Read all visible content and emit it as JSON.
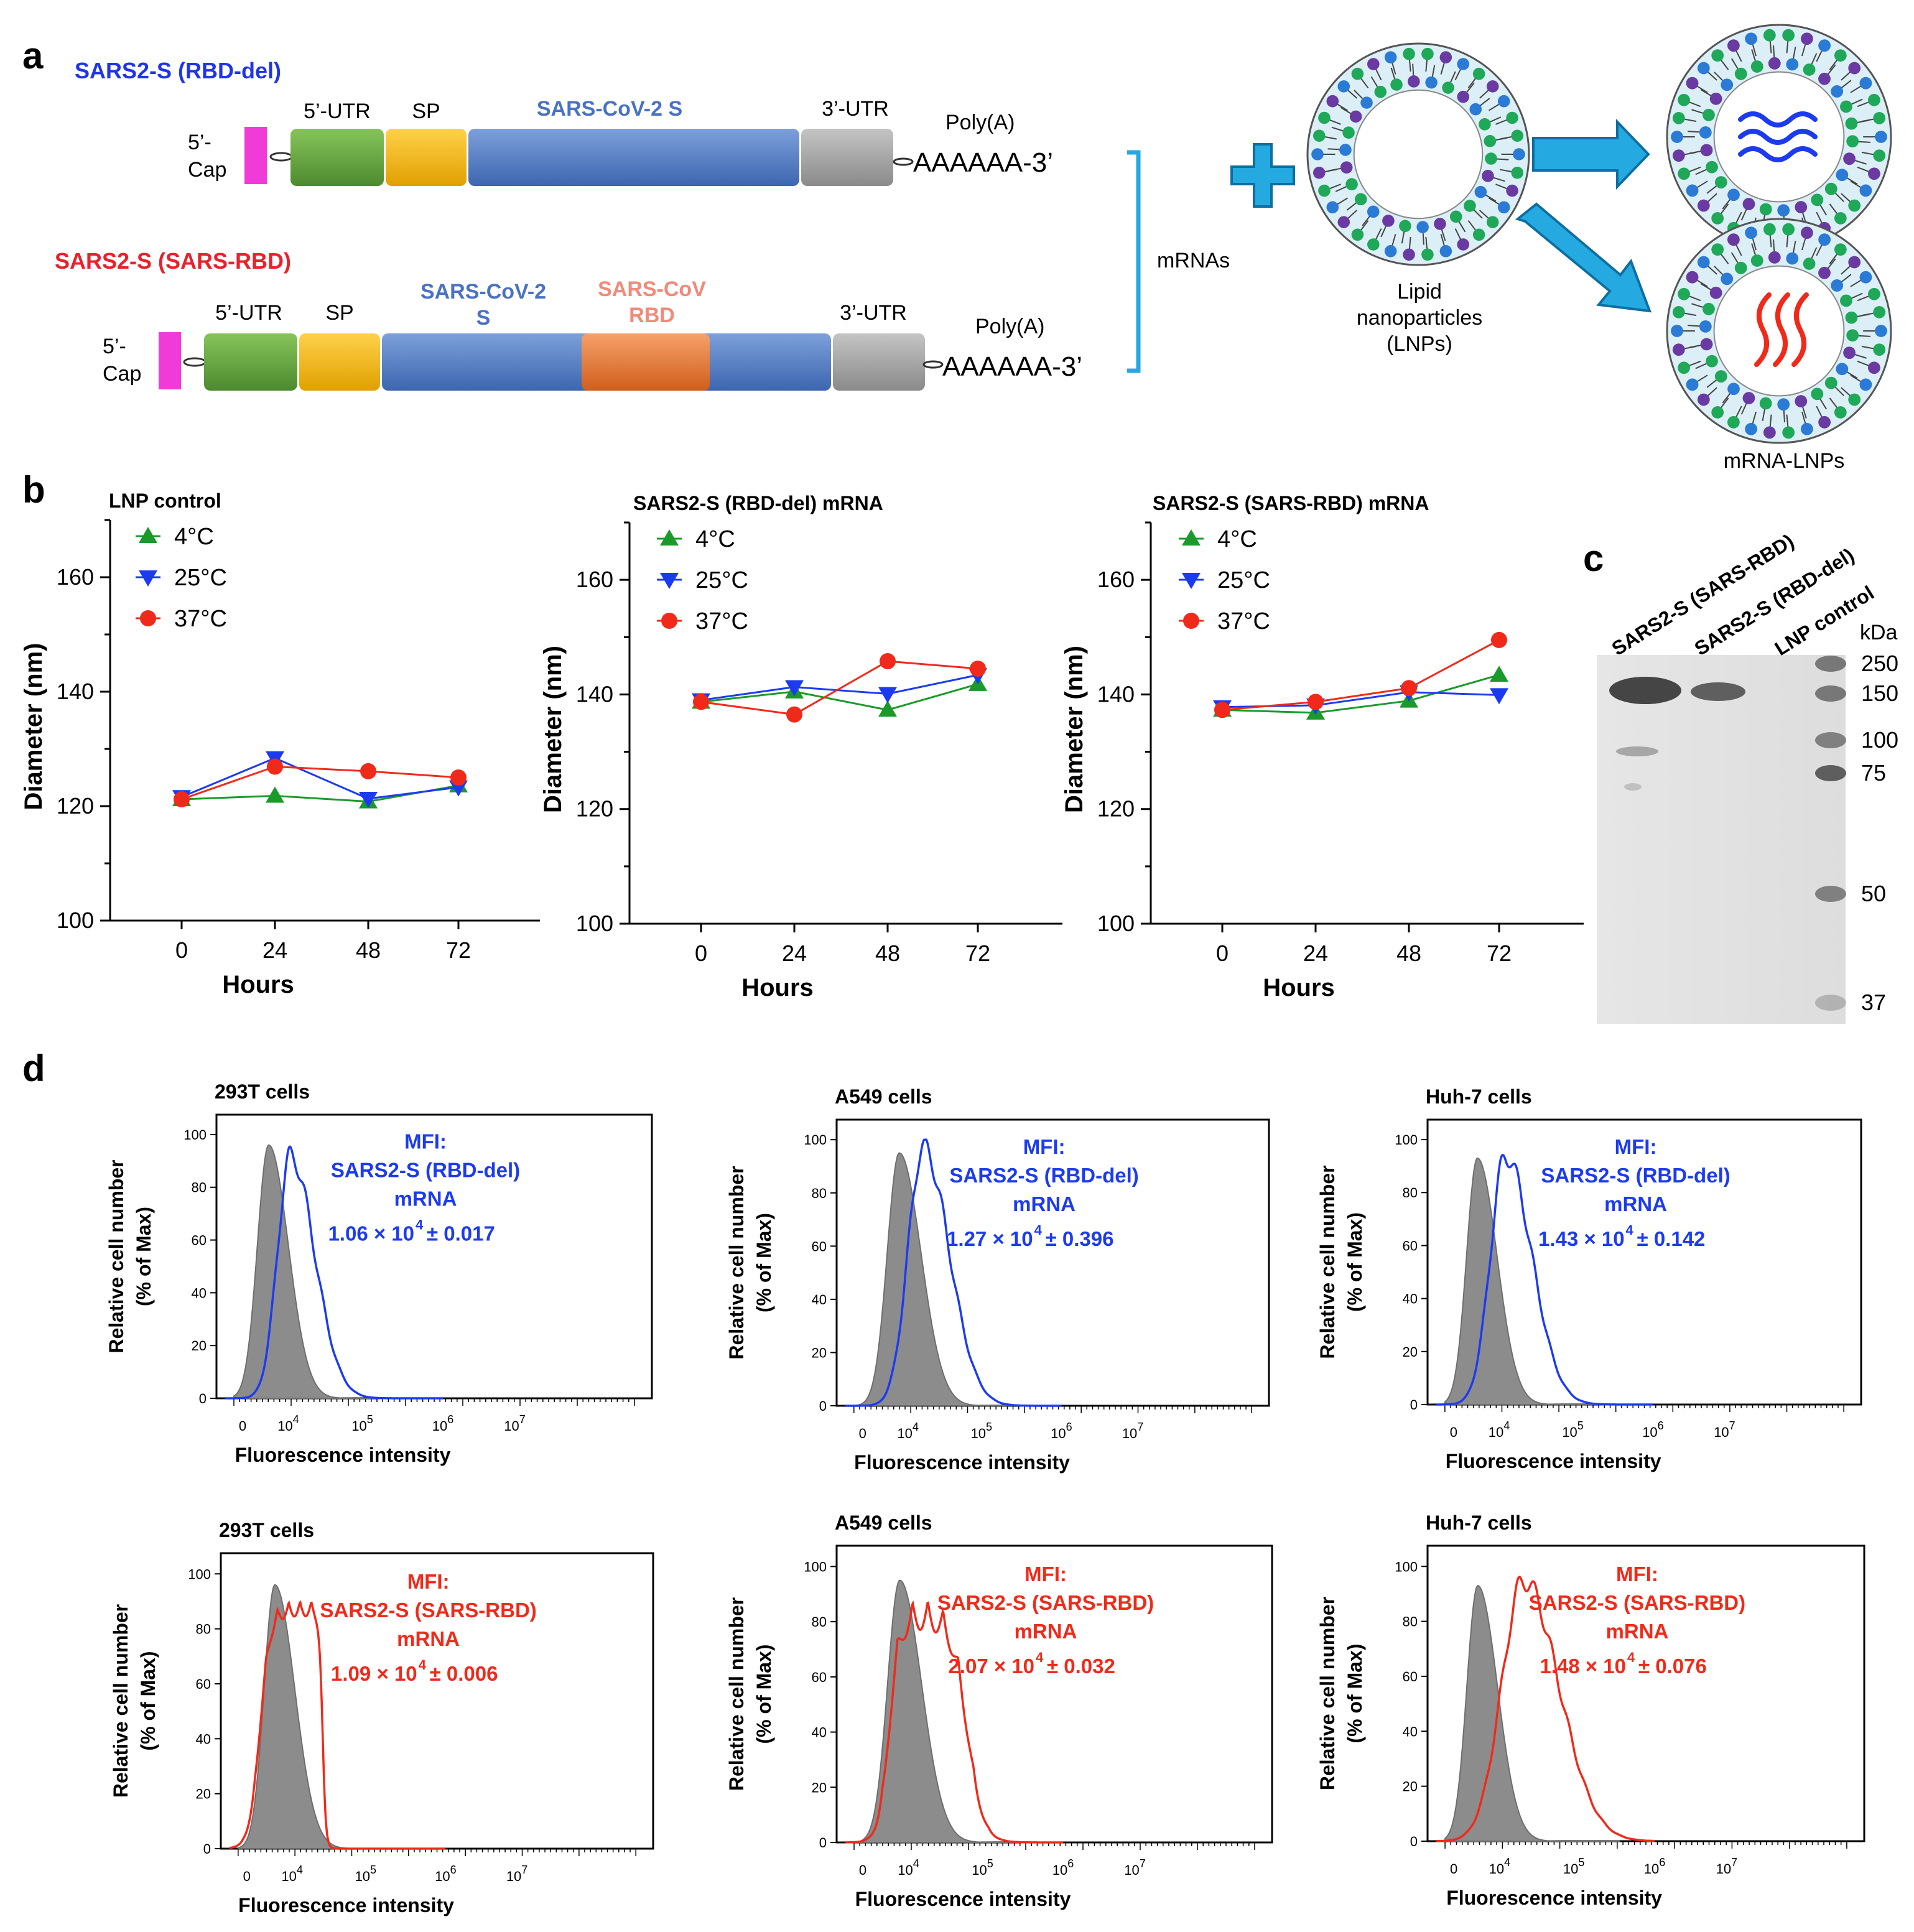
{
  "panel_labels": {
    "a": "a",
    "b": "b",
    "c": "c",
    "d": "d"
  },
  "construct_rbd_del": {
    "name": "SARS2-S (RBD-del)",
    "cap": [
      "5’-",
      "Cap"
    ],
    "utr5": "5’-UTR",
    "sp": "SP",
    "s": "SARS-CoV-2 S",
    "utr3": "3’-UTR",
    "polya_label": "Poly(A)",
    "polya_seq": "AAAAAA-3’"
  },
  "construct_sars_rbd": {
    "name": "SARS2-S (SARS-RBD)",
    "cap": [
      "5’-",
      "Cap"
    ],
    "utr5": "5’-UTR",
    "sp": "SP",
    "s": [
      "SARS-CoV-2",
      "S"
    ],
    "rbd": [
      "SARS-CoV",
      "RBD"
    ],
    "utr3": "3’-UTR",
    "polya_label": "Poly(A)",
    "polya_seq": "AAAAAA-3’"
  },
  "mrnas_label": "mRNAs",
  "lnp_label": [
    "Lipid",
    "nanoparticles",
    "(LNPs)"
  ],
  "mrna_lnp_label": "mRNA-LNPs",
  "colors": {
    "blue_text": "#1f35e6",
    "red_text": "#e8212b",
    "s_blue": "#5b84c9",
    "rbd_orange": "#e47a36",
    "green": "#69a542",
    "yellow": "#f4b616",
    "grey": "#a5a5a5",
    "magenta": "#f13bd8",
    "cyan": "#25a9e1",
    "series_4c": "#1a9a2a",
    "series_25c": "#1c3bf0",
    "series_37c": "#f02a1a"
  },
  "chart_data": [
    {
      "type": "line",
      "title": "LNP control",
      "xlabel": "Hours",
      "ylabel": "Diameter (nm)",
      "x": [
        0,
        24,
        48,
        72
      ],
      "ylim": [
        100,
        170
      ],
      "yticks": [
        100,
        120,
        140,
        160
      ],
      "series": [
        {
          "name": "4°C",
          "values": [
            121.2,
            121.8,
            120.8,
            123.6
          ]
        },
        {
          "name": "25°C",
          "values": [
            121.6,
            128.4,
            121.3,
            123.3
          ]
        },
        {
          "name": "37°C",
          "values": [
            121.2,
            126.9,
            126.1,
            125.0
          ]
        }
      ]
    },
    {
      "type": "line",
      "title": "SARS2-S (RBD-del) mRNA",
      "xlabel": "Hours",
      "ylabel": "Diameter (nm)",
      "x": [
        0,
        24,
        48,
        72
      ],
      "ylim": [
        100,
        170
      ],
      "yticks": [
        100,
        120,
        140,
        160
      ],
      "series": [
        {
          "name": "4°C",
          "values": [
            138.7,
            140.5,
            137.3,
            141.8
          ]
        },
        {
          "name": "25°C",
          "values": [
            139.0,
            141.3,
            140.1,
            143.4
          ]
        },
        {
          "name": "37°C",
          "values": [
            138.7,
            136.5,
            145.8,
            144.5
          ]
        }
      ]
    },
    {
      "type": "line",
      "title": "SARS2-S (SARS-RBD) mRNA",
      "xlabel": "Hours",
      "ylabel": "Diameter (nm)",
      "x": [
        0,
        24,
        48,
        72
      ],
      "ylim": [
        100,
        170
      ],
      "yticks": [
        100,
        120,
        140,
        160
      ],
      "series": [
        {
          "name": "4°C",
          "values": [
            137.3,
            136.8,
            138.9,
            143.4
          ]
        },
        {
          "name": "25°C",
          "values": [
            137.8,
            138.1,
            140.4,
            139.9
          ]
        },
        {
          "name": "37°C",
          "values": [
            137.3,
            138.7,
            141.1,
            149.5
          ]
        }
      ]
    }
  ],
  "gel": {
    "lanes": [
      "SARS2-S (SARS-RBD)",
      "SARS2-S (RBD-del)",
      "LNP control"
    ],
    "unit": "kDa",
    "markers": [
      250,
      150,
      100,
      75,
      50,
      37
    ]
  },
  "flow": {
    "ylabel": [
      "Relative cell number",
      "(% of Max)"
    ],
    "xlabel": "Fluorescence intensity",
    "yticks": [
      "0",
      "20",
      "40",
      "60",
      "80",
      "100"
    ],
    "xticks": [
      "0",
      "10^4",
      "10^5",
      "10^6",
      "10^7"
    ],
    "mfi_title": "MFI:",
    "mrna": "mRNA",
    "panels": [
      {
        "cells": "293T cells",
        "construct": "SARS2-S (RBD-del)",
        "mfi": "1.06 × 10",
        "sd": "± 0.017"
      },
      {
        "cells": "A549 cells",
        "construct": "SARS2-S (RBD-del)",
        "mfi": "1.27 × 10",
        "sd": "± 0.396"
      },
      {
        "cells": "Huh-7 cells",
        "construct": "SARS2-S (RBD-del)",
        "mfi": "1.43 × 10",
        "sd": "± 0.142"
      },
      {
        "cells": "293T cells",
        "construct": "SARS2-S (SARS-RBD)",
        "mfi": "1.09 × 10",
        "sd": "± 0.006"
      },
      {
        "cells": "A549 cells",
        "construct": "SARS2-S (SARS-RBD)",
        "mfi": "2.07 × 10",
        "sd": "± 0.032"
      },
      {
        "cells": "Huh-7 cells",
        "construct": "SARS2-S (SARS-RBD)",
        "mfi": "1.48 × 10",
        "sd": "± 0.076"
      }
    ]
  }
}
